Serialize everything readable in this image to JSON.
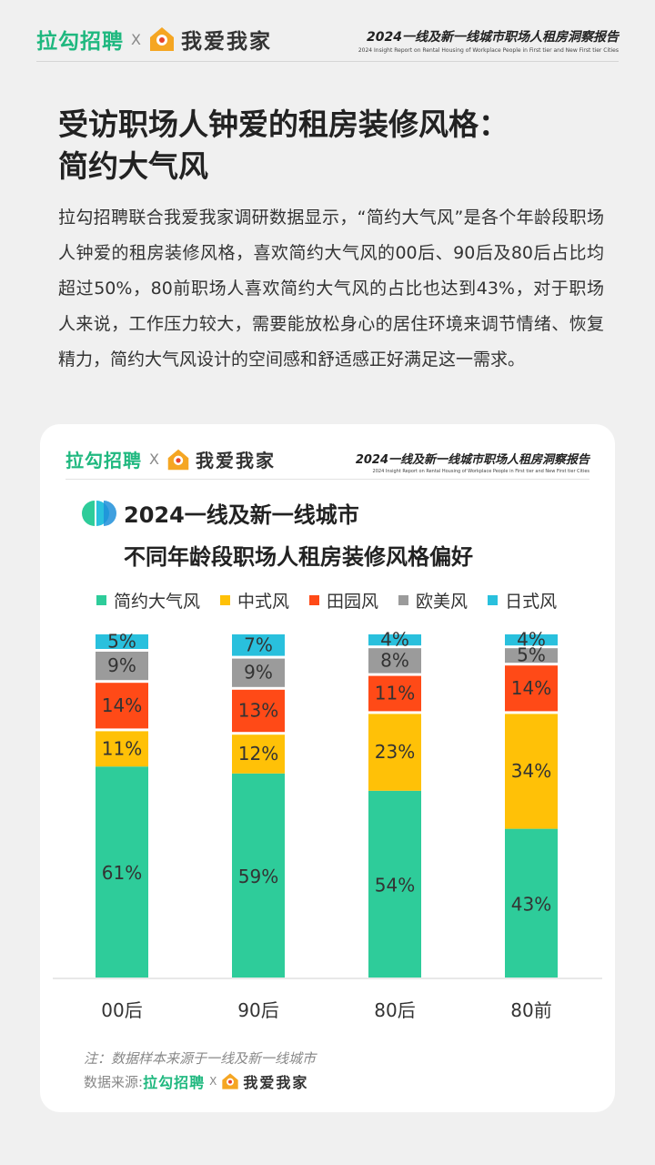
{
  "header": {
    "brand_lagou": "拉勾招聘",
    "brand_cross": "X",
    "brand_woai": "我爱我家",
    "report_title": "2024一线及新一线城市职场人租房洞察报告",
    "report_subtitle": "2024 Insight Report on Rental Housing of Workplace People in First tier and New First tier Cities"
  },
  "article": {
    "title_line1": "受访职场人钟爱的租房装修风格：",
    "title_line2": "简约大气风",
    "intro": "拉勾招聘联合我爱我家调研数据显示，“简约大气风”是各个年龄段职场人钟爱的租房装修风格，喜欢简约大气风的00后、90后及80后占比均超过50%，80前职场人喜欢简约大气风的占比也达到43%，对于职场人来说，工作压力较大，需要能放松身心的居住环境来调节情绪、恢复精力，简约大气风设计的空间感和舒适感正好满足这一需求。"
  },
  "card": {
    "brand_lagou": "拉勾招聘",
    "brand_cross": "X",
    "brand_woai": "我爱我家",
    "report_title": "2024一线及新一线城市职场人租房洞察报告",
    "report_subtitle": "2024 Insight Report on Rental Housing of Workplace People in First tier and New First tier Cities",
    "note": "注：数据样本来源于一线及新一线城市",
    "source_label": "数据来源:",
    "source_lagou": "拉勾招聘",
    "source_cross": "X",
    "source_woai": "我爱我家"
  },
  "colors": {
    "brand_green": "#1fb87f",
    "house_orange": "#f5a623"
  },
  "chart_data": {
    "type": "bar",
    "stacked": true,
    "title_line1": "2024一线及新一线城市",
    "title_line2": "不同年龄段职场人租房装修风格偏好",
    "categories": [
      "00后",
      "90后",
      "80后",
      "80前"
    ],
    "series": [
      {
        "name": "简约大气风",
        "color": "#2ecc9a",
        "values": [
          61,
          59,
          54,
          43
        ],
        "labels": [
          "61%",
          "59%",
          "54%",
          "43%"
        ]
      },
      {
        "name": "中式风",
        "color": "#ffc107",
        "values": [
          11,
          12,
          23,
          34
        ],
        "labels": [
          "11%",
          "12%",
          "23%",
          "34%"
        ]
      },
      {
        "name": "田园风",
        "color": "#ff4a17",
        "values": [
          14,
          13,
          11,
          14
        ],
        "labels": [
          "14%",
          "13%",
          "11%",
          "14%"
        ]
      },
      {
        "name": "欧美风",
        "color": "#9b9b9b",
        "values": [
          9,
          9,
          8,
          5
        ],
        "labels": [
          "9%",
          "9%",
          "8%",
          "5%"
        ]
      },
      {
        "name": "日式风",
        "color": "#29c0dd",
        "values": [
          5,
          7,
          4,
          4
        ],
        "labels": [
          "5%",
          "7%",
          "4%",
          "4%"
        ]
      }
    ],
    "ylim": [
      0,
      100
    ],
    "grid": false,
    "legend_position": "top",
    "xlabel": "",
    "ylabel": ""
  }
}
